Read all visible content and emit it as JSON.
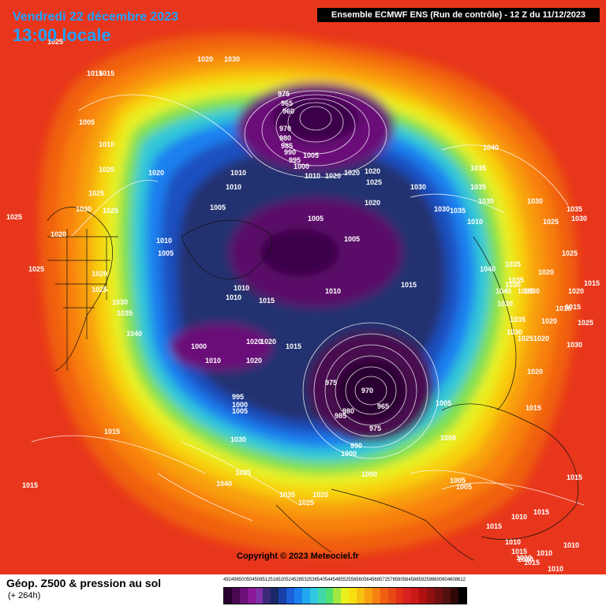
{
  "header": {
    "date": "Vendredi 22 décembre 2023",
    "time": "13:00 locale",
    "run": "Ensemble ECMWF ENS  (Run de contrôle)  -  12 Z du 11/12/2023"
  },
  "copyright": "Copyright © 2023 Meteociel.fr",
  "footer": {
    "title": "Géop. Z500 & pression au sol",
    "subtitle": "(+ 264h)"
  },
  "scale": {
    "labels": [
      "492",
      "496",
      "500",
      "504",
      "508",
      "512",
      "516",
      "520",
      "524",
      "528",
      "532",
      "536",
      "540",
      "544",
      "548",
      "552",
      "556",
      "560",
      "564",
      "568",
      "572",
      "576",
      "580",
      "584",
      "588",
      "592",
      "596",
      "600",
      "604",
      "608",
      "612"
    ],
    "colors": [
      "#2a0030",
      "#4a0850",
      "#6a1078",
      "#8a1898",
      "#8030a8",
      "#3a2878",
      "#182868",
      "#1840a8",
      "#1a60d8",
      "#1a80f0",
      "#20a8f0",
      "#30c8e0",
      "#40d8a8",
      "#50e070",
      "#a0e840",
      "#e8f020",
      "#f8e010",
      "#f8c010",
      "#f8a010",
      "#f88010",
      "#f06010",
      "#e84818",
      "#e03018",
      "#d82020",
      "#c81818",
      "#b01010",
      "#901010",
      "#701010",
      "#501010",
      "#300808",
      "#000000"
    ]
  },
  "pressure_labels": [
    {
      "text": "1015"
    },
    {
      "text": "1020"
    },
    {
      "text": "1030"
    },
    {
      "text": "1025"
    },
    {
      "text": "1015"
    },
    {
      "text": "1005"
    },
    {
      "text": "1010"
    },
    {
      "text": "1020"
    },
    {
      "text": "1020"
    },
    {
      "text": "1025"
    },
    {
      "text": "1030"
    },
    {
      "text": "1025"
    },
    {
      "text": "1025"
    },
    {
      "text": "1020"
    },
    {
      "text": "1025"
    },
    {
      "text": "1020"
    },
    {
      "text": "1025"
    },
    {
      "text": "1030"
    },
    {
      "text": "1035"
    },
    {
      "text": "1040"
    },
    {
      "text": "975"
    },
    {
      "text": "965"
    },
    {
      "text": "960"
    },
    {
      "text": "970"
    },
    {
      "text": "980"
    },
    {
      "text": "985"
    },
    {
      "text": "990"
    },
    {
      "text": "995"
    },
    {
      "text": "1000"
    },
    {
      "text": "1005"
    },
    {
      "text": "1010"
    },
    {
      "text": "1020"
    },
    {
      "text": "1020"
    },
    {
      "text": "1025"
    },
    {
      "text": "1030"
    },
    {
      "text": "1020"
    },
    {
      "text": "1020"
    },
    {
      "text": "1010"
    },
    {
      "text": "1010"
    },
    {
      "text": "1005"
    },
    {
      "text": "1010"
    },
    {
      "text": "1005"
    },
    {
      "text": "1005"
    },
    {
      "text": "1005"
    },
    {
      "text": "1010"
    },
    {
      "text": "1015"
    },
    {
      "text": "1010"
    },
    {
      "text": "1010"
    },
    {
      "text": "1015"
    },
    {
      "text": "1000"
    },
    {
      "text": "1010"
    },
    {
      "text": "1020"
    },
    {
      "text": "1020"
    },
    {
      "text": "1020"
    },
    {
      "text": "1015"
    },
    {
      "text": "975"
    },
    {
      "text": "970"
    },
    {
      "text": "965"
    },
    {
      "text": "985"
    },
    {
      "text": "980"
    },
    {
      "text": "975"
    },
    {
      "text": "990"
    },
    {
      "text": "1000"
    },
    {
      "text": "1000"
    },
    {
      "text": "995"
    },
    {
      "text": "1000"
    },
    {
      "text": "1005"
    },
    {
      "text": "1015"
    },
    {
      "text": "1030"
    },
    {
      "text": "1035"
    },
    {
      "text": "1040"
    },
    {
      "text": "1015"
    },
    {
      "text": "1035"
    },
    {
      "text": "1025"
    },
    {
      "text": "1020"
    },
    {
      "text": "1005"
    },
    {
      "text": "1005"
    },
    {
      "text": "1005"
    },
    {
      "text": "1005"
    },
    {
      "text": "1040"
    },
    {
      "text": "1035"
    },
    {
      "text": "1035"
    },
    {
      "text": "1030"
    },
    {
      "text": "1035"
    },
    {
      "text": "1030"
    },
    {
      "text": "1010"
    },
    {
      "text": "1035"
    },
    {
      "text": "1030"
    },
    {
      "text": "1025"
    },
    {
      "text": "1030"
    },
    {
      "text": "1030"
    },
    {
      "text": "1040"
    },
    {
      "text": "1035"
    },
    {
      "text": "1040"
    },
    {
      "text": "1030"
    },
    {
      "text": "1035"
    },
    {
      "text": "1030"
    },
    {
      "text": "1025"
    },
    {
      "text": "1020"
    },
    {
      "text": "1020"
    },
    {
      "text": "1015"
    },
    {
      "text": "1015"
    },
    {
      "text": "1020"
    },
    {
      "text": "1025"
    },
    {
      "text": "1020"
    },
    {
      "text": "1030"
    },
    {
      "text": "1025"
    },
    {
      "text": "1030"
    },
    {
      "text": "1035"
    },
    {
      "text": "1025"
    },
    {
      "text": "1015"
    },
    {
      "text": "1015"
    },
    {
      "text": "1015"
    },
    {
      "text": "1010"
    },
    {
      "text": "1015"
    },
    {
      "text": "1010"
    },
    {
      "text": "1010"
    },
    {
      "text": "1010"
    },
    {
      "text": "1010"
    },
    {
      "text": "1010"
    },
    {
      "text": "1015"
    },
    {
      "text": "1010"
    },
    {
      "text": "1015"
    },
    {
      "text": "1020"
    },
    {
      "text": "1015"
    }
  ]
}
